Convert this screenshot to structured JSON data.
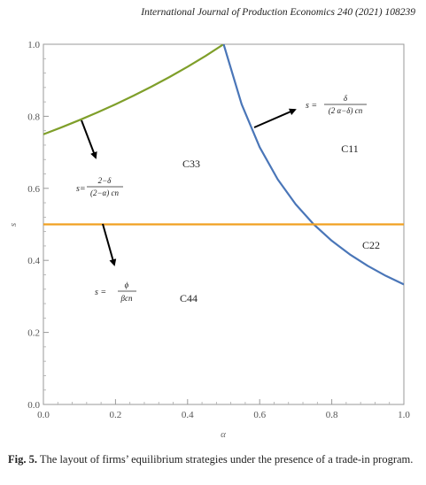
{
  "journal_header": "International Journal of Production Economics 240 (2021) 108239",
  "caption": {
    "label": "Fig. 5.",
    "text": "The layout of firms’ equilibrium strategies under the presence of a trade-in program."
  },
  "chart_data": {
    "type": "line",
    "xlabel": "α",
    "ylabel": "s",
    "xlim": [
      0.0,
      1.0
    ],
    "ylim": [
      0.0,
      1.0
    ],
    "xticks": [
      "0.0",
      "0.2",
      "0.4",
      "0.6",
      "0.8",
      "1.0"
    ],
    "yticks": [
      "0.0",
      "0.2",
      "0.4",
      "0.6",
      "0.8",
      "1.0"
    ],
    "grid": false,
    "series": [
      {
        "color": "#7f9f2a",
        "x": [
          0.0,
          0.05,
          0.1,
          0.15,
          0.2,
          0.25,
          0.3,
          0.35,
          0.4,
          0.45,
          0.5
        ],
        "y": [
          0.75,
          0.7692,
          0.7895,
          0.8108,
          0.8333,
          0.8571,
          0.8824,
          0.9091,
          0.9375,
          0.9677,
          1.0
        ]
      },
      {
        "color": "#4a76b8",
        "x": [
          0.5,
          0.55,
          0.6,
          0.65,
          0.7,
          0.75,
          0.8,
          0.85,
          0.9,
          0.95,
          1.0
        ],
        "y": [
          1.0,
          0.8333,
          0.7143,
          0.625,
          0.5556,
          0.5,
          0.4545,
          0.4167,
          0.3846,
          0.3571,
          0.3333
        ]
      },
      {
        "color": "#f0a020",
        "x": [
          0.0,
          1.0
        ],
        "y": [
          0.5,
          0.5
        ]
      }
    ],
    "regions": [
      {
        "label": "C33",
        "x": 0.41,
        "y": 0.66
      },
      {
        "label": "C11",
        "x": 0.85,
        "y": 0.7
      },
      {
        "label": "C22",
        "x": 0.91,
        "y": 0.44
      },
      {
        "label": "C44",
        "x": 0.405,
        "y": 0.295
      }
    ],
    "annotations": [
      {
        "lhs": "s =",
        "numerator": "δ",
        "denominator": "(2 α−δ) cn"
      },
      {
        "lhs": "s=",
        "numerator": "2−δ",
        "denominator": "(2−α) cn"
      },
      {
        "lhs": "s =",
        "numerator": "ϕ",
        "denominator": "βcn"
      }
    ]
  }
}
